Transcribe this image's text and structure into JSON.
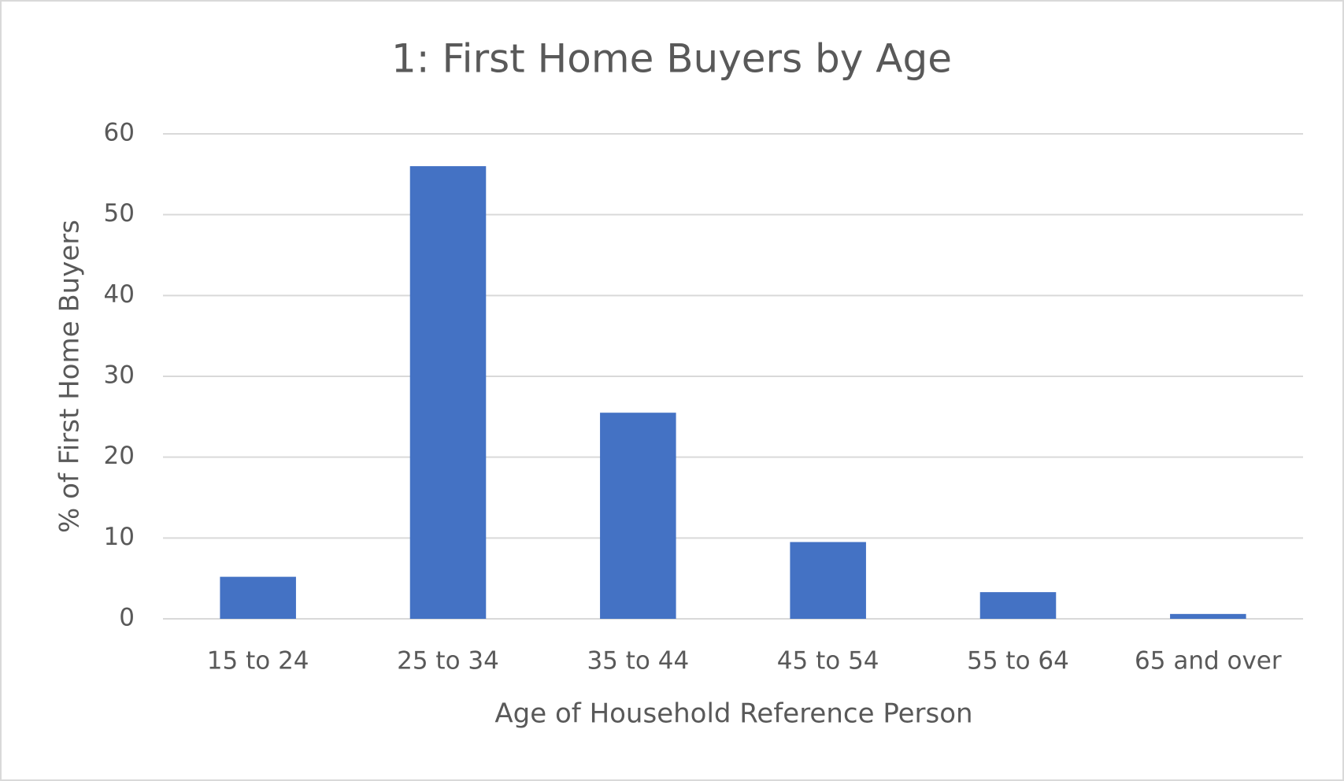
{
  "chart_data": {
    "type": "bar",
    "title": "1:  First Home Buyers by Age",
    "x_label": "Age of Household Reference Person",
    "y_label": "% of First Home Buyers",
    "categories": [
      "15 to 24",
      "25 to 34",
      "35 to 44",
      "45 to 54",
      "55 to 64",
      "65 and over"
    ],
    "values": [
      5.2,
      56.0,
      25.5,
      9.5,
      3.3,
      0.6
    ],
    "color": "#4472c4",
    "ylim": [
      0,
      60
    ],
    "yticks": [
      0,
      10,
      20,
      30,
      40,
      50,
      60
    ],
    "grid": true
  }
}
